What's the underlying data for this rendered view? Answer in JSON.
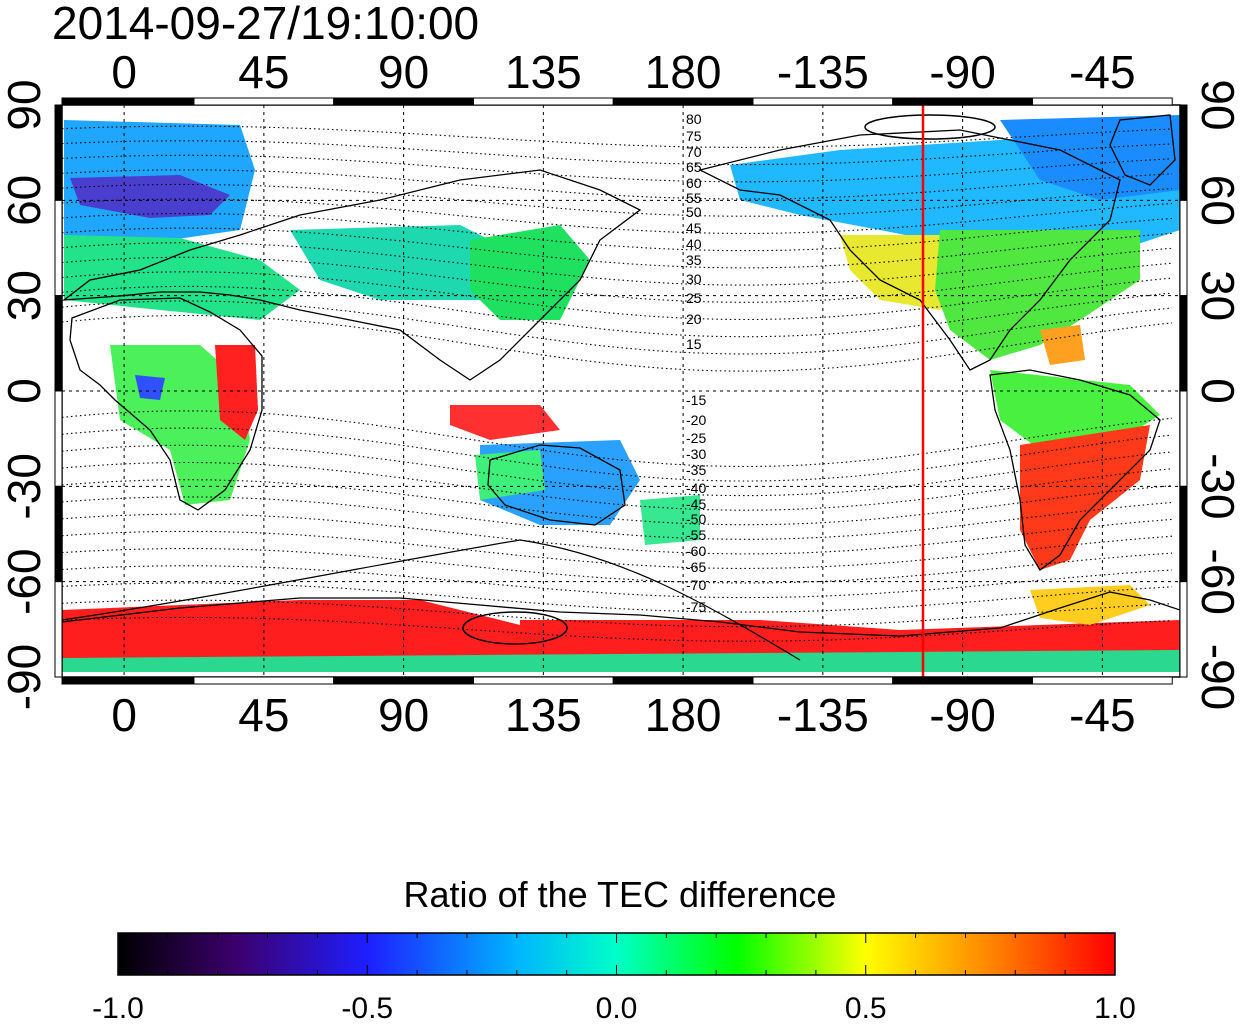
{
  "title": "2014-09-27/19:10:00",
  "map": {
    "top_axis_labels": [
      "0",
      "45",
      "90",
      "135",
      "180",
      "-135",
      "-90",
      "-45"
    ],
    "bottom_axis_labels": [
      "0",
      "45",
      "90",
      "135",
      "180",
      "-135",
      "-90",
      "-45"
    ],
    "left_axis_labels": [
      "90",
      "60",
      "30",
      "0",
      "-30",
      "-60",
      "-90"
    ],
    "right_axis_labels": [
      "90",
      "60",
      "30",
      "0",
      "-30",
      "-60",
      "-90"
    ],
    "contour_labels_north": [
      "80",
      "75",
      "70",
      "65",
      "60",
      "55",
      "50",
      "45",
      "40",
      "35",
      "30",
      "25",
      "20",
      "15"
    ],
    "contour_labels_south": [
      "-15",
      "-20",
      "-25",
      "-30",
      "-35",
      "-40",
      "-45",
      "-50",
      "-55",
      "-60",
      "-65",
      "-70",
      "-75"
    ],
    "terminator_longitude": -105,
    "terminator_color": "#ff0000"
  },
  "colorbar": {
    "title": "Ratio of the TEC difference",
    "tick_labels": [
      "-1.0",
      "-0.5",
      "0.0",
      "0.5",
      "1.0"
    ],
    "min": -1.0,
    "max": 1.0,
    "colors": [
      "#000000",
      "#3c006e",
      "#2020ff",
      "#00ffff",
      "#00ff00",
      "#ffff00",
      "#ff8000",
      "#ff0000"
    ]
  }
}
